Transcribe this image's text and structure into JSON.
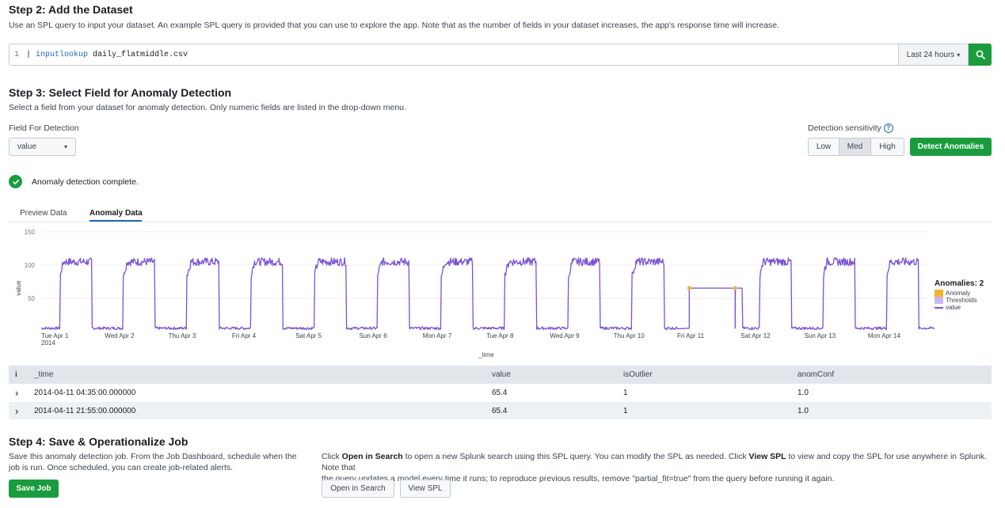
{
  "step2": {
    "title": "Step 2: Add the Dataset",
    "description": "Use an SPL query to input your dataset. An example SPL query is provided that you can use to explore the app. Note that as the number of fields in your dataset increases, the app's response time will increase.",
    "line_number": "1",
    "query_prefix": "| ",
    "query_command": "inputlookup",
    "query_args": " daily_flatmiddle.csv",
    "time_range": "Last 24 hours",
    "time_caret": "▾"
  },
  "step3": {
    "title": "Step 3: Select Field for Anomaly Detection",
    "description": "Select a field from your dataset for anomaly detection. Only numeric fields are listed in the drop-down menu.",
    "field_label": "Field For Detection",
    "field_value": "value",
    "field_caret": "▾",
    "sensitivity_label": "Detection sensitivity",
    "help_glyph": "?",
    "sensitivity_options": [
      "Low",
      "Med",
      "High"
    ],
    "sensitivity_selected": "Med",
    "detect_button": "Detect Anomalies",
    "status_text": "Anomaly detection complete."
  },
  "tabs": [
    {
      "label": "Preview Data",
      "active": false
    },
    {
      "label": "Anomaly Data",
      "active": true
    }
  ],
  "chart_data": {
    "type": "line",
    "xlabel": "_time",
    "ylabel": "value",
    "ylim": [
      0,
      150
    ],
    "yticks": [
      50,
      100,
      150
    ],
    "x_ticks": [
      "Tue Apr 1",
      "Wed Apr 2",
      "Thu Apr 3",
      "Fri Apr 4",
      "Sat Apr 5",
      "Sun Apr 6",
      "Mon Apr 7",
      "Tue Apr 8",
      "Wed Apr 9",
      "Thu Apr 10",
      "Fri Apr 11",
      "Sat Apr 12",
      "Sun Apr 13",
      "Mon Apr 14"
    ],
    "x_tick_sub": "2014",
    "days": 14,
    "series": [
      {
        "name": "value",
        "color": "#7b52d6",
        "pattern": "daily: ~5 at night, ~105 from 07:00 to 19:00; Apr 11 flat at 65.4"
      }
    ],
    "day_level": 105,
    "night_level": 5,
    "day_start_hour": 7,
    "day_end_hour": 19,
    "flat_day": {
      "date": "Fri Apr 11",
      "value": 65.4
    },
    "anomalies": [
      {
        "time": "2014-04-11 04:35",
        "value": 65.4
      },
      {
        "time": "2014-04-11 21:55",
        "value": 65.4
      }
    ],
    "legend": {
      "title": "Anomalies: 2",
      "items": [
        {
          "label": "Anomaly",
          "color": "#f5b327"
        },
        {
          "label": "Thresholds",
          "color": "#c9b8f0"
        },
        {
          "label": "value",
          "color": "#7b52d6"
        }
      ]
    }
  },
  "table": {
    "info_glyph": "i",
    "columns": [
      "_time",
      "value",
      "isOutlier",
      "anomConf"
    ],
    "rows": [
      {
        "expand": "›",
        "time": "2014-04-11 04:35:00.000000",
        "value": "65.4",
        "isOutlier": "1",
        "anomConf": "1.0"
      },
      {
        "expand": "›",
        "time": "2014-04-11 21:55:00.000000",
        "value": "65.4",
        "isOutlier": "1",
        "anomConf": "1.0"
      }
    ]
  },
  "step4": {
    "title": "Step 4: Save & Operationalize Job",
    "left_line1": "Save this anomaly detection job. From the Job Dashboard, schedule when the",
    "left_line2": "job is run. Once scheduled, you can create job-related alerts.",
    "save_button": "Save Job",
    "right_line1_a": "Click ",
    "right_line1_b": "Open in Search",
    "right_line1_c": " to open a new Splunk search using this SPL query. You can modify the SPL as needed. Click ",
    "right_line1_d": "View SPL",
    "right_line1_e": " to view and copy the SPL for use anywhere in Splunk. Note that",
    "right_line2": "the query updates a model every time it runs; to reproduce previous results, remove \"partial_fit=true\" from the query before running it again.",
    "open_search_button": "Open in Search",
    "view_spl_button": "View SPL"
  }
}
